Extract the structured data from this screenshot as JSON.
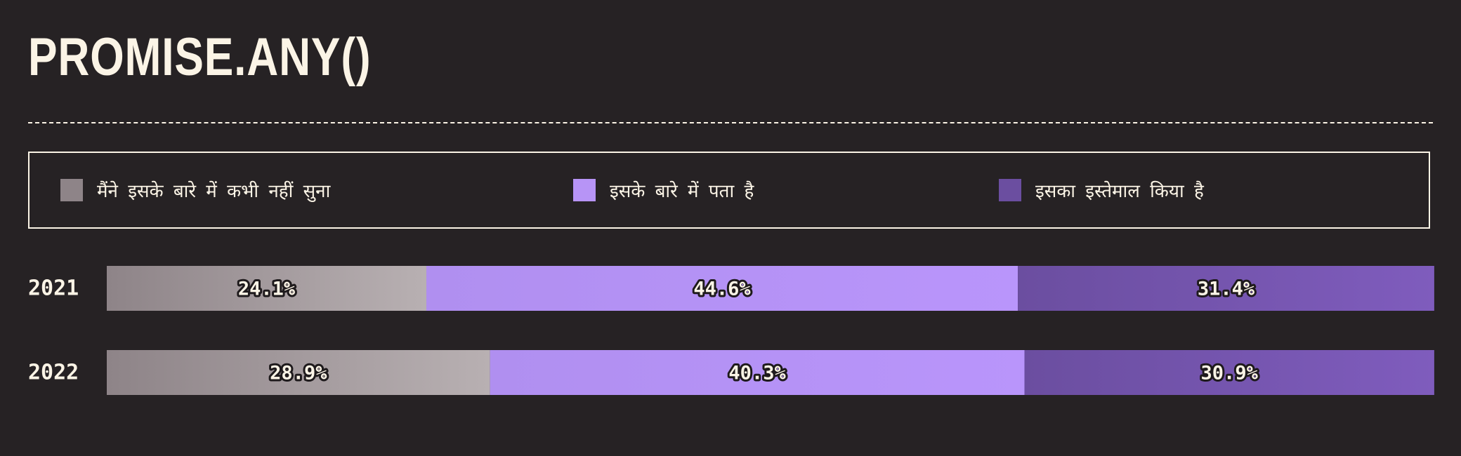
{
  "title": "PROMISE.ANY()",
  "legend": [
    {
      "label": "मैंने इसके बारे में कभी नहीं सुना",
      "color": "#8e8488"
    },
    {
      "label": "इसके बारे में पता है",
      "color": "#b794f6"
    },
    {
      "label": "इसका इस्तेमाल किया है",
      "color": "#6b4ea0"
    }
  ],
  "chart_data": {
    "type": "bar",
    "orientation": "horizontal",
    "stacked": true,
    "title": "PROMISE.ANY()",
    "categories": [
      "2021",
      "2022"
    ],
    "series": [
      {
        "name": "मैंने इसके बारे में कभी नहीं सुना",
        "values": [
          24.1,
          28.9
        ],
        "labels": [
          "24.1%",
          "28.9%"
        ],
        "color": "#8e8488",
        "color_end": "#b8b0b2"
      },
      {
        "name": "इसके बारे में पता है",
        "values": [
          44.6,
          40.3
        ],
        "labels": [
          "44.6%",
          "40.3%"
        ],
        "color": "#b08ff0",
        "color_end": "#b995fb"
      },
      {
        "name": "इसका इस्तेमाल किया है",
        "values": [
          31.4,
          30.9
        ],
        "labels": [
          "31.4%",
          "30.9%"
        ],
        "color": "#6b4ea0",
        "color_end": "#7f5cbd"
      }
    ],
    "xlim": [
      0,
      100
    ],
    "legend_position": "top",
    "grid": false
  }
}
